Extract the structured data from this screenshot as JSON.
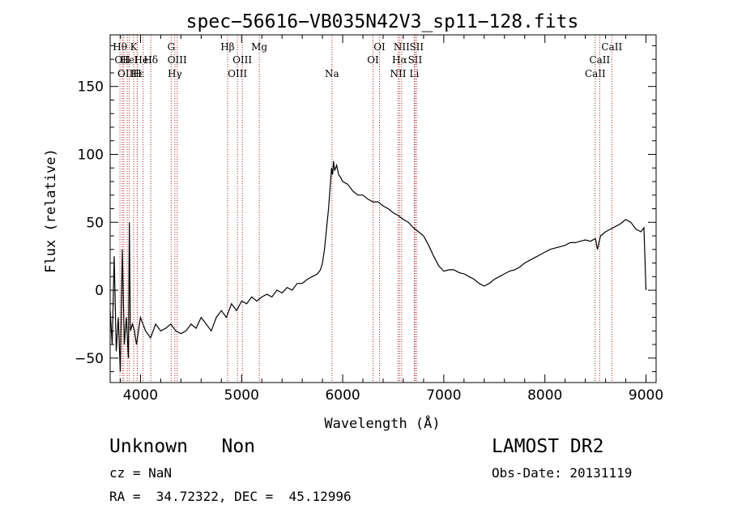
{
  "chart_data": {
    "type": "line",
    "title": "spec−56616−VB035N42V3_sp11−128.fits",
    "xlabel": "Wavelength (Å)",
    "ylabel": "Flux (relative)",
    "xlim": [
      3700,
      9100
    ],
    "ylim": [
      -68,
      188
    ],
    "x_ticks": [
      4000,
      5000,
      6000,
      7000,
      8000,
      9000
    ],
    "x_tick_labels": [
      "4000",
      "5000",
      "6000",
      "7000",
      "8000",
      "9000"
    ],
    "y_ticks": [
      -50,
      0,
      50,
      100,
      150
    ],
    "y_tick_labels": [
      "−50",
      "0",
      "50",
      "100",
      "150"
    ],
    "grid": false,
    "line_color": "#000000",
    "marker_color": "#b22222",
    "series": [
      {
        "x": [
          3700,
          3720,
          3740,
          3760,
          3780,
          3800,
          3820,
          3840,
          3860,
          3880,
          3890,
          3900,
          3920,
          3940,
          3960,
          3980,
          4000,
          4050,
          4100,
          4150,
          4200,
          4250,
          4300,
          4350,
          4400,
          4450,
          4500,
          4550,
          4600,
          4650,
          4700,
          4750,
          4800,
          4850,
          4900,
          4950,
          5000,
          5050,
          5100,
          5150,
          5200,
          5250,
          5300,
          5350,
          5400,
          5450,
          5500,
          5550,
          5600,
          5650,
          5700,
          5750,
          5780,
          5800,
          5820,
          5840,
          5860,
          5880,
          5890,
          5900,
          5910,
          5920,
          5940,
          5960,
          5980,
          6000,
          6050,
          6100,
          6150,
          6200,
          6250,
          6300,
          6350,
          6400,
          6450,
          6500,
          6550,
          6600,
          6650,
          6700,
          6750,
          6800,
          6850,
          6900,
          6950,
          7000,
          7050,
          7100,
          7150,
          7200,
          7250,
          7300,
          7350,
          7400,
          7450,
          7500,
          7550,
          7600,
          7650,
          7700,
          7750,
          7800,
          7850,
          7900,
          7950,
          8000,
          8050,
          8100,
          8150,
          8200,
          8250,
          8300,
          8350,
          8400,
          8450,
          8500,
          8520,
          8550,
          8600,
          8650,
          8700,
          8750,
          8800,
          8850,
          8900,
          8950,
          8980,
          9000
        ],
        "y": [
          -15,
          -40,
          25,
          -45,
          -20,
          -60,
          30,
          -40,
          -20,
          -50,
          50,
          -30,
          -25,
          -30,
          -40,
          -30,
          -20,
          -30,
          -35,
          -25,
          -30,
          -28,
          -25,
          -30,
          -32,
          -30,
          -25,
          -28,
          -20,
          -25,
          -30,
          -20,
          -15,
          -20,
          -10,
          -15,
          -8,
          -10,
          -5,
          -8,
          -5,
          -3,
          -5,
          0,
          -2,
          2,
          0,
          5,
          5,
          8,
          10,
          12,
          15,
          20,
          30,
          45,
          60,
          80,
          90,
          85,
          95,
          88,
          92,
          85,
          83,
          80,
          78,
          73,
          70,
          70,
          67,
          65,
          65,
          62,
          60,
          57,
          55,
          52,
          50,
          46,
          43,
          40,
          33,
          25,
          18,
          14,
          15,
          15,
          13,
          12,
          10,
          8,
          5,
          3,
          5,
          8,
          10,
          12,
          14,
          15,
          17,
          20,
          22,
          24,
          26,
          28,
          30,
          31,
          32,
          33,
          35,
          35,
          36,
          37,
          36,
          38,
          30,
          40,
          43,
          45,
          47,
          49,
          52,
          50,
          45,
          43,
          46,
          0
        ]
      }
    ],
    "line_markers": [
      {
        "wl": 3797,
        "row": 1,
        "label": "Hθ"
      },
      {
        "wl": 3820,
        "row": 2,
        "label": "OII"
      },
      {
        "wl": 3835,
        "row": 1,
        "label": ""
      },
      {
        "wl": 3869,
        "row": 3,
        "label": "OIII"
      },
      {
        "wl": 3889,
        "row": 2,
        "label": "HeI"
      },
      {
        "wl": 3933,
        "row": 1,
        "label": "K"
      },
      {
        "wl": 3968,
        "row": 3,
        "label": "H"
      },
      {
        "wl": 3970,
        "row": 3,
        "label": "Hε"
      },
      {
        "wl": 4026,
        "row": 2,
        "label": "HeI"
      },
      {
        "wl": 4102,
        "row": 2,
        "label": "Hδ"
      },
      {
        "wl": 4304,
        "row": 1,
        "label": "G"
      },
      {
        "wl": 4340,
        "row": 3,
        "label": "Hγ"
      },
      {
        "wl": 4363,
        "row": 2,
        "label": "OIII"
      },
      {
        "wl": 4861,
        "row": 1,
        "label": "Hβ"
      },
      {
        "wl": 4959,
        "row": 3,
        "label": "OIII"
      },
      {
        "wl": 5007,
        "row": 2,
        "label": "OIII"
      },
      {
        "wl": 5175,
        "row": 1,
        "label": "Mg"
      },
      {
        "wl": 5894,
        "row": 3,
        "label": "Na"
      },
      {
        "wl": 6300,
        "row": 2,
        "label": "OI"
      },
      {
        "wl": 6364,
        "row": 1,
        "label": "OI"
      },
      {
        "wl": 6548,
        "row": 3,
        "label": "NII"
      },
      {
        "wl": 6563,
        "row": 2,
        "label": "Hα"
      },
      {
        "wl": 6583,
        "row": 1,
        "label": "NII"
      },
      {
        "wl": 6708,
        "row": 3,
        "label": "Li"
      },
      {
        "wl": 6716,
        "row": 2,
        "label": "SII"
      },
      {
        "wl": 6731,
        "row": 1,
        "label": "SII"
      },
      {
        "wl": 8498,
        "row": 3,
        "label": "CaII"
      },
      {
        "wl": 8542,
        "row": 2,
        "label": "CaII"
      },
      {
        "wl": 8662,
        "row": 1,
        "label": "CaII"
      }
    ]
  },
  "info": {
    "classification": "Unknown   Non",
    "survey": "LAMOST DR2",
    "cz": "cz = NaN",
    "obs_date": "Obs-Date: 20131119",
    "coords": "RA =  34.72322, DEC =  45.12996"
  }
}
